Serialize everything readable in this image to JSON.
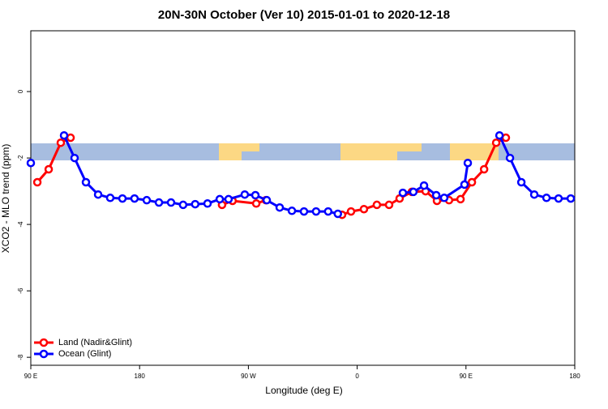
{
  "chart_data": {
    "type": "line",
    "title": "20N-30N October (Ver 10)   2015-01-01 to 2020-12-18",
    "x_label": "Longitude (deg E)",
    "y_label": "XCO2 - MLO trend (ppm)",
    "xlim": [
      90,
      540
    ],
    "ylim": [
      -8.24,
      1.83
    ],
    "xticks": [
      {
        "value": 90,
        "label": "90 E"
      },
      180,
      {
        "value": 270,
        "label": "90 W"
      },
      {
        "value": 360,
        "label": "0"
      },
      {
        "value": 450,
        "label": "90 E"
      },
      {
        "value": 540,
        "label": "180"
      }
    ],
    "yticks": [
      -8,
      -6,
      -4,
      -2,
      0
    ],
    "legend": "bottom-left",
    "series": [
      {
        "name": "Land (Nadir&Glint)",
        "color": "#ff0000",
        "x": [
          95.4,
          104.8,
          114.8,
          122.9,
          null,
          248.2,
          256.9,
          276.5,
          284.5,
          null,
          347.5,
          354.9,
          365.6,
          376.3,
          386.4,
          395.1,
          405.2,
          416.6,
          426,
          436,
          445.5,
          454.9,
          465,
          475,
          483
        ],
        "values": [
          -2.73,
          -2.34,
          -1.54,
          -1.39,
          null,
          -3.41,
          -3.29,
          -3.37,
          -3.27,
          null,
          -3.71,
          -3.61,
          -3.54,
          -3.41,
          -3.41,
          -3.22,
          -3.02,
          -3.0,
          -3.29,
          -3.27,
          -3.24,
          -2.73,
          -2.34,
          -1.54,
          -1.39
        ]
      },
      {
        "name": "Ocean (Glint)",
        "color": "#0000ff",
        "x": [
          90,
          null,
          117.5,
          126.2,
          135.6,
          145.7,
          155.7,
          165.8,
          175.8,
          185.9,
          196,
          206,
          216,
          226,
          236.2,
          246.3,
          253.6,
          267,
          275.8,
          285.2,
          295.9,
          306,
          316,
          326,
          336,
          344,
          null,
          397.8,
          406.5,
          415.3,
          425.4,
          432,
          448.8,
          451.5,
          null,
          477.7,
          486.4,
          495.8,
          506.5,
          516.6,
          526.6,
          536.7
        ],
        "values": [
          -2.15,
          null,
          -1.32,
          -2.0,
          -2.73,
          -3.1,
          -3.2,
          -3.22,
          -3.22,
          -3.27,
          -3.34,
          -3.34,
          -3.41,
          -3.39,
          -3.37,
          -3.24,
          -3.24,
          -3.1,
          -3.12,
          -3.27,
          -3.49,
          -3.59,
          -3.61,
          -3.61,
          -3.61,
          -3.68,
          null,
          -3.05,
          -3.02,
          -2.83,
          -3.12,
          -3.2,
          -2.8,
          -2.15,
          null,
          -1.32,
          -2.0,
          -2.73,
          -3.1,
          -3.2,
          -3.22,
          -3.22
        ]
      }
    ]
  }
}
